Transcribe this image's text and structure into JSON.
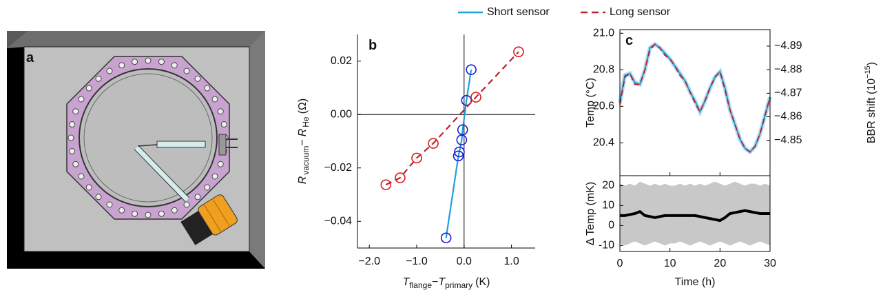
{
  "illustration": {
    "label": "a"
  },
  "chart_data": [
    {
      "type": "scatter",
      "panel_label": "b",
      "xlabel_parts": [
        "T",
        "flange",
        "−",
        "T",
        "primary",
        "(K)"
      ],
      "ylabel_parts": [
        "R",
        "vacuum",
        "−",
        "R",
        "He",
        "(Ω)"
      ],
      "xlim": [
        -2.25,
        1.5
      ],
      "xticks": [
        {
          "value": -2,
          "label": "−2.0"
        },
        {
          "value": -1,
          "label": "−1.0"
        },
        {
          "value": 0,
          "label": "0.0"
        },
        {
          "value": 1,
          "label": "1.0"
        }
      ],
      "ylim": [
        -0.05,
        0.03
      ],
      "yticks": [
        {
          "value": 0.02,
          "label": "0.02"
        },
        {
          "value": 0,
          "label": "0.00"
        },
        {
          "value": -0.02,
          "label": "−0.02"
        },
        {
          "value": -0.04,
          "label": "−0.04"
        }
      ],
      "series": [
        {
          "color": "#1f9fdc",
          "marker_color": "#1a1adc",
          "dash": false,
          "x": [
            -0.38,
            -0.12,
            -0.1,
            -0.05,
            -0.03,
            0.05,
            0.15
          ],
          "values": [
            -0.0462,
            -0.0155,
            -0.014,
            -0.0095,
            -0.0057,
            0.0053,
            0.0168
          ]
        },
        {
          "color": "#b8232f",
          "marker_color": "#dc1a1a",
          "dash": true,
          "x": [
            -1.65,
            -1.35,
            -1.0,
            -0.65,
            0.25,
            1.15
          ],
          "values": [
            -0.0263,
            -0.0237,
            -0.0163,
            -0.0108,
            0.0065,
            0.0235
          ]
        }
      ]
    },
    {
      "type": "line",
      "panel_label": "c",
      "ylabel": "Temp (°C)",
      "y2label_parts": [
        "BBR shift (10",
        "−15",
        ")"
      ],
      "x": [
        0,
        1,
        2,
        3,
        4,
        5,
        6,
        7,
        8,
        9,
        10,
        11,
        12,
        13,
        14,
        15,
        16,
        17,
        18,
        19,
        20,
        21,
        22,
        23,
        24,
        25,
        26,
        27,
        28,
        29,
        30
      ],
      "xlim": [
        0,
        30
      ],
      "ylim": [
        20.22,
        21.02
      ],
      "yticks": [
        20.4,
        20.6,
        20.8,
        {
          "value": 21,
          "label": "21.0"
        }
      ],
      "y2lim": [
        -4.835,
        -4.897
      ],
      "y2ticks": [
        {
          "value": -4.89,
          "label": "−4.89"
        },
        {
          "value": -4.88,
          "label": "−4.88"
        },
        {
          "value": -4.87,
          "label": "−4.87"
        },
        {
          "value": -4.86,
          "label": "−4.86"
        },
        {
          "value": -4.85,
          "label": "−4.85"
        }
      ],
      "series": [
        {
          "name": "Short sensor",
          "color": "#1f9fdc",
          "dash": false,
          "values": [
            20.62,
            20.77,
            20.78,
            20.73,
            20.72,
            20.8,
            20.92,
            20.94,
            20.92,
            20.89,
            20.86,
            20.82,
            20.78,
            20.74,
            20.68,
            20.63,
            20.57,
            20.63,
            20.7,
            20.76,
            20.79,
            20.7,
            20.58,
            20.5,
            20.42,
            20.37,
            20.35,
            20.38,
            20.45,
            20.55,
            20.65
          ]
        },
        {
          "name": "Long sensor",
          "color": "#b8232f",
          "dash": true,
          "values": [
            20.61,
            20.76,
            20.78,
            20.72,
            20.72,
            20.8,
            20.91,
            20.94,
            20.92,
            20.88,
            20.86,
            20.82,
            20.77,
            20.74,
            20.68,
            20.62,
            20.57,
            20.63,
            20.7,
            20.76,
            20.79,
            20.69,
            20.58,
            20.5,
            20.42,
            20.37,
            20.35,
            20.38,
            20.45,
            20.55,
            20.65
          ]
        }
      ]
    },
    {
      "type": "line",
      "xlabel": "Time (h)",
      "ylabel": "Δ Temp (mK)",
      "x": [
        0,
        1,
        2,
        3,
        4,
        5,
        6,
        7,
        8,
        9,
        10,
        11,
        12,
        13,
        14,
        15,
        16,
        17,
        18,
        19,
        20,
        21,
        22,
        23,
        24,
        25,
        26,
        27,
        28,
        29,
        30
      ],
      "xlim": [
        0,
        30
      ],
      "xticks": [
        0,
        10,
        20,
        30
      ],
      "ylim": [
        -13,
        25
      ],
      "yticks": [
        20,
        10,
        0,
        -10
      ],
      "band": {
        "color": "#c8c8c8",
        "upper": [
          21,
          20,
          21,
          20,
          22,
          21,
          20,
          21,
          20,
          21,
          20,
          20,
          21,
          20,
          21,
          20,
          21,
          20,
          21,
          22,
          21,
          20,
          21,
          22,
          21,
          20,
          21,
          21,
          20,
          21,
          20
        ],
        "lower": [
          -9,
          -10,
          -9,
          -8,
          -9,
          -10,
          -9,
          -8,
          -9,
          -10,
          -9,
          -9,
          -8,
          -9,
          -10,
          -9,
          -8,
          -9,
          -10,
          -9,
          -8,
          -9,
          -10,
          -9,
          -8,
          -9,
          -10,
          -9,
          -8,
          -9,
          -10
        ]
      },
      "series": [
        {
          "color": "#000000",
          "values": [
            5,
            5,
            5.5,
            6,
            7,
            5,
            4.5,
            4,
            4.5,
            5,
            5,
            5,
            5,
            5,
            5,
            5,
            4.5,
            4,
            3.5,
            3,
            2.5,
            4,
            6,
            6.5,
            7,
            7.5,
            7,
            6.5,
            6,
            6,
            6
          ]
        }
      ]
    }
  ]
}
